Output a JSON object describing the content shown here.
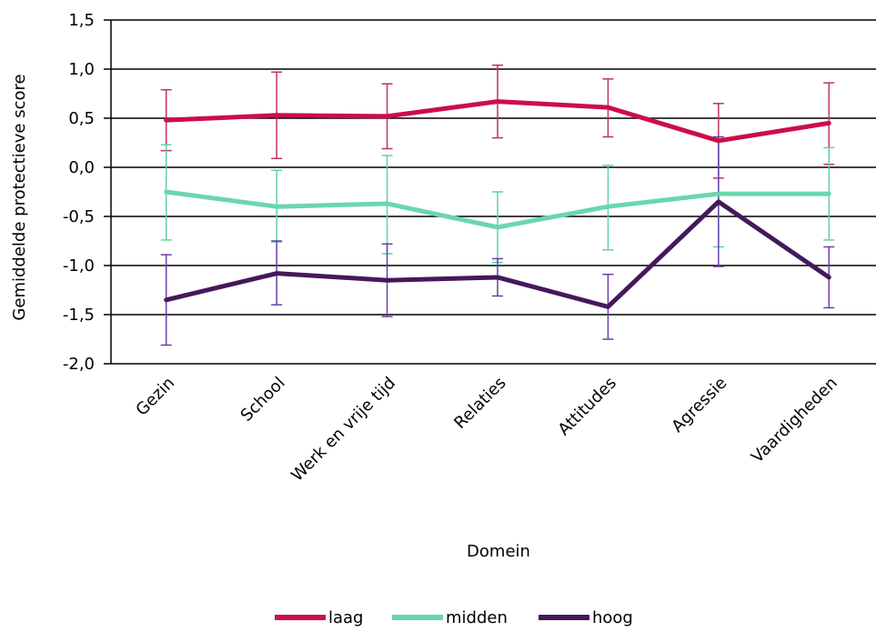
{
  "chart_data": {
    "type": "line",
    "xlabel": "Domein",
    "ylabel": "Gemiddelde protectieve score",
    "ylim": [
      -2.0,
      1.5
    ],
    "yticks": [
      "1,5",
      "1,0",
      "0,5",
      "0,0",
      "-0,5",
      "-1,0",
      "-1,5",
      "-2,0"
    ],
    "ytick_values": [
      1.5,
      1.0,
      0.5,
      0.0,
      -0.5,
      -1.0,
      -1.5,
      -2.0
    ],
    "grid": true,
    "legend_position": "bottom",
    "categories": [
      "Gezin",
      "School",
      "Werk en vrije tijd",
      "Relaties",
      "Attitudes",
      "Agressie",
      "Vaardigheden"
    ],
    "series": [
      {
        "name": "laag",
        "color": "#cc0d4a",
        "errcolor": "#c1335f",
        "values": [
          0.48,
          0.53,
          0.52,
          0.67,
          0.61,
          0.27,
          0.45
        ],
        "lower": [
          0.17,
          0.09,
          0.19,
          0.3,
          0.31,
          -0.11,
          0.03
        ],
        "upper": [
          0.79,
          0.97,
          0.85,
          1.04,
          0.9,
          0.65,
          0.86
        ]
      },
      {
        "name": "midden",
        "color": "#6bd6ac",
        "errcolor": "#5ed3a5",
        "values": [
          -0.25,
          -0.4,
          -0.37,
          -0.61,
          -0.4,
          -0.27,
          -0.27
        ],
        "lower": [
          -0.74,
          -0.76,
          -0.88,
          -0.97,
          -0.84,
          -0.81,
          -0.74
        ],
        "upper": [
          0.23,
          -0.03,
          0.12,
          -0.25,
          0.02,
          0.31,
          0.2
        ]
      },
      {
        "name": "hoog",
        "color": "#45185c",
        "errcolor": "#6a3fa8",
        "values": [
          -1.35,
          -1.08,
          -1.15,
          -1.12,
          -1.42,
          -0.35,
          -1.12
        ],
        "lower": [
          -1.81,
          -1.4,
          -1.52,
          -1.31,
          -1.75,
          -1.01,
          -1.43
        ],
        "upper": [
          -0.89,
          -0.75,
          -0.78,
          -0.93,
          -1.09,
          0.31,
          -0.81
        ]
      }
    ]
  }
}
